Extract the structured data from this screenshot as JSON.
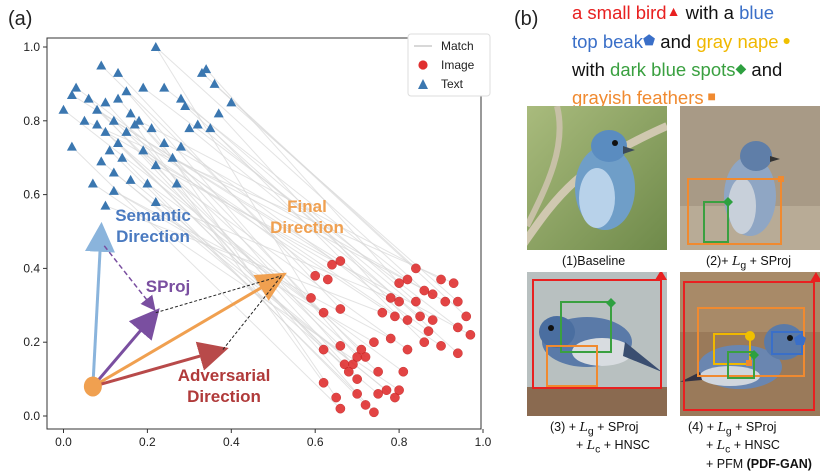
{
  "panels": {
    "a_label": "(a)",
    "b_label": "(b)"
  },
  "chart_data": {
    "type": "scatter",
    "xlim": [
      0.0,
      1.0
    ],
    "ylim": [
      0.0,
      1.0
    ],
    "xticks": [
      "0.0",
      "0.2",
      "0.4",
      "0.6",
      "0.8",
      "1.0"
    ],
    "yticks": [
      "0.0",
      "0.2",
      "0.4",
      "0.6",
      "0.8",
      "1.0"
    ],
    "legend": {
      "placement": "top-right",
      "items": [
        "Match",
        "Image",
        "Text"
      ]
    },
    "series": [
      {
        "name": "Text",
        "marker": "triangle",
        "color": "#3b77b0",
        "points": [
          [
            0.22,
            1.0
          ],
          [
            0.09,
            0.95
          ],
          [
            0.03,
            0.89
          ],
          [
            0.02,
            0.87
          ],
          [
            0.13,
            0.93
          ],
          [
            0.0,
            0.83
          ],
          [
            0.06,
            0.86
          ],
          [
            0.08,
            0.83
          ],
          [
            0.1,
            0.85
          ],
          [
            0.13,
            0.86
          ],
          [
            0.15,
            0.88
          ],
          [
            0.12,
            0.8
          ],
          [
            0.16,
            0.82
          ],
          [
            0.08,
            0.79
          ],
          [
            0.1,
            0.77
          ],
          [
            0.13,
            0.74
          ],
          [
            0.17,
            0.79
          ],
          [
            0.21,
            0.78
          ],
          [
            0.02,
            0.73
          ],
          [
            0.11,
            0.72
          ],
          [
            0.14,
            0.7
          ],
          [
            0.19,
            0.72
          ],
          [
            0.09,
            0.69
          ],
          [
            0.12,
            0.66
          ],
          [
            0.16,
            0.64
          ],
          [
            0.07,
            0.63
          ],
          [
            0.2,
            0.63
          ],
          [
            0.27,
            0.63
          ],
          [
            0.12,
            0.61
          ],
          [
            0.1,
            0.57
          ],
          [
            0.22,
            0.58
          ],
          [
            0.34,
            0.94
          ],
          [
            0.36,
            0.9
          ],
          [
            0.24,
            0.89
          ],
          [
            0.28,
            0.86
          ],
          [
            0.37,
            0.82
          ],
          [
            0.3,
            0.78
          ],
          [
            0.32,
            0.79
          ],
          [
            0.28,
            0.73
          ],
          [
            0.35,
            0.78
          ],
          [
            0.26,
            0.7
          ],
          [
            0.24,
            0.74
          ],
          [
            0.18,
            0.8
          ],
          [
            0.05,
            0.8
          ],
          [
            0.4,
            0.85
          ],
          [
            0.33,
            0.93
          ],
          [
            0.19,
            0.89
          ],
          [
            0.15,
            0.77
          ],
          [
            0.29,
            0.84
          ],
          [
            0.22,
            0.68
          ]
        ]
      },
      {
        "name": "Image",
        "marker": "circle",
        "color": "#e03030",
        "points": [
          [
            0.59,
            0.32
          ],
          [
            0.6,
            0.38
          ],
          [
            0.63,
            0.37
          ],
          [
            0.66,
            0.42
          ],
          [
            0.66,
            0.29
          ],
          [
            0.62,
            0.28
          ],
          [
            0.62,
            0.18
          ],
          [
            0.66,
            0.19
          ],
          [
            0.67,
            0.14
          ],
          [
            0.69,
            0.14
          ],
          [
            0.7,
            0.16
          ],
          [
            0.71,
            0.18
          ],
          [
            0.72,
            0.16
          ],
          [
            0.75,
            0.12
          ],
          [
            0.7,
            0.1
          ],
          [
            0.68,
            0.12
          ],
          [
            0.62,
            0.09
          ],
          [
            0.65,
            0.05
          ],
          [
            0.66,
            0.02
          ],
          [
            0.7,
            0.06
          ],
          [
            0.72,
            0.03
          ],
          [
            0.74,
            0.01
          ],
          [
            0.75,
            0.06
          ],
          [
            0.77,
            0.07
          ],
          [
            0.79,
            0.05
          ],
          [
            0.8,
            0.07
          ],
          [
            0.81,
            0.12
          ],
          [
            0.82,
            0.18
          ],
          [
            0.78,
            0.21
          ],
          [
            0.76,
            0.28
          ],
          [
            0.78,
            0.32
          ],
          [
            0.8,
            0.36
          ],
          [
            0.84,
            0.4
          ],
          [
            0.82,
            0.37
          ],
          [
            0.84,
            0.31
          ],
          [
            0.82,
            0.26
          ],
          [
            0.85,
            0.27
          ],
          [
            0.88,
            0.26
          ],
          [
            0.87,
            0.23
          ],
          [
            0.86,
            0.2
          ],
          [
            0.88,
            0.33
          ],
          [
            0.91,
            0.31
          ],
          [
            0.9,
            0.37
          ],
          [
            0.93,
            0.36
          ],
          [
            0.94,
            0.31
          ],
          [
            0.96,
            0.27
          ],
          [
            0.94,
            0.24
          ],
          [
            0.9,
            0.19
          ],
          [
            0.94,
            0.17
          ],
          [
            0.97,
            0.22
          ],
          [
            0.86,
            0.34
          ],
          [
            0.8,
            0.31
          ],
          [
            0.64,
            0.41
          ],
          [
            0.79,
            0.27
          ],
          [
            0.74,
            0.2
          ]
        ]
      }
    ],
    "annotations": {
      "semantic": "Semantic\nDirection",
      "final": "Final\nDirection",
      "sproj": "SProj",
      "adversarial": "Adversarial\nDirection"
    },
    "vectors": {
      "origin": [
        0.07,
        0.08
      ],
      "semantic": [
        0.09,
        0.51
      ],
      "final": [
        0.52,
        0.38
      ],
      "sproj": [
        0.22,
        0.28
      ],
      "adversarial": [
        0.38,
        0.18
      ],
      "semantic_color": "#8ab4dc",
      "final_color": "#f0a050",
      "sproj_color": "#7a4fa0",
      "adversarial_color": "#b84a4a",
      "origin_color": "#f0a050"
    }
  },
  "caption_b": {
    "line1": [
      {
        "t": "a small bird",
        "c": "#e82020"
      },
      {
        "t": "▲",
        "c": "#e82020",
        "icon": "red-triangle-icon"
      },
      {
        "t": " with a ",
        "c": "#111111"
      },
      {
        "t": "blue",
        "c": "#3a6fc8"
      }
    ],
    "line2": [
      {
        "t": "top beak",
        "c": "#3a6fc8"
      },
      {
        "t": "⬟",
        "c": "#3a6fc8",
        "icon": "blue-pentagon-icon"
      },
      {
        "t": " and ",
        "c": "#111111"
      },
      {
        "t": "gray nape",
        "c": "#f0b800"
      },
      {
        "t": " ●",
        "c": "#f0c000",
        "icon": "yellow-circle-icon"
      }
    ],
    "line3": [
      {
        "t": "with  ",
        "c": "#111111"
      },
      {
        "t": "dark blue spots",
        "c": "#3aa040"
      },
      {
        "t": "◆",
        "c": "#2ea040",
        "icon": "green-diamond-icon"
      },
      {
        "t": " and",
        "c": "#111111"
      }
    ],
    "line4": [
      {
        "t": "grayish feathers",
        "c": "#f08a30"
      },
      {
        "t": " ■",
        "c": "#f08a30",
        "icon": "orange-square-icon"
      }
    ]
  },
  "photos": [
    {
      "id": "baseline",
      "caption": [
        "(1)Baseline"
      ]
    },
    {
      "id": "lg-sproj",
      "caption": [
        "(2)+ ",
        "L",
        "g",
        " + SProj"
      ]
    },
    {
      "id": "lc-hnsc",
      "caption_lines": [
        [
          "(3) + ",
          "L",
          "g",
          " + SProj"
        ],
        [
          "+ ",
          "L",
          "c",
          " + HNSC"
        ]
      ]
    },
    {
      "id": "pdf-gan",
      "caption_lines": [
        [
          "(4) + ",
          "L",
          "g",
          " + SProj"
        ],
        [
          "+ ",
          "L",
          "c",
          " + HNSC"
        ],
        [
          "+ PFM ",
          "(PDF-GAN)"
        ]
      ]
    }
  ]
}
